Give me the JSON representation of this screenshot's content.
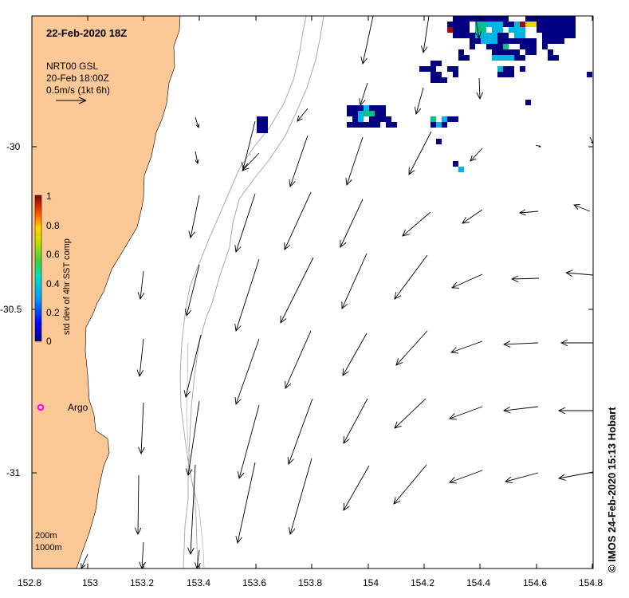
{
  "map": {
    "date_title": "22-Feb-2020 18Z",
    "currents_source": "NRT00 GSL",
    "currents_time": "20-Feb 18:00Z",
    "vector_scale": "0.5m/s (1kt 6h)",
    "x_ticks": [
      "152.8",
      "153",
      "153.2",
      "153.4",
      "153.6",
      "153.8",
      "154",
      "154.2",
      "154.4",
      "154.6",
      "154.8"
    ],
    "y_ticks": [
      "-30",
      "-30.5",
      "-31"
    ],
    "colorbar": {
      "title": "std dev of 4hr SST comp",
      "ticks": [
        "1",
        "0.8",
        "0.6",
        "0.4",
        "0.2",
        "0"
      ]
    },
    "isobaths": [
      "200m",
      "1000m"
    ],
    "argo_label": "Argo",
    "credit": "© IMOS 24-Feb-2020 15:13 Hobart",
    "colors": {
      "land": "#FBC896",
      "argo": "#FF00FF",
      "sst_low": "#000080",
      "sst_high": "#800000"
    }
  }
}
